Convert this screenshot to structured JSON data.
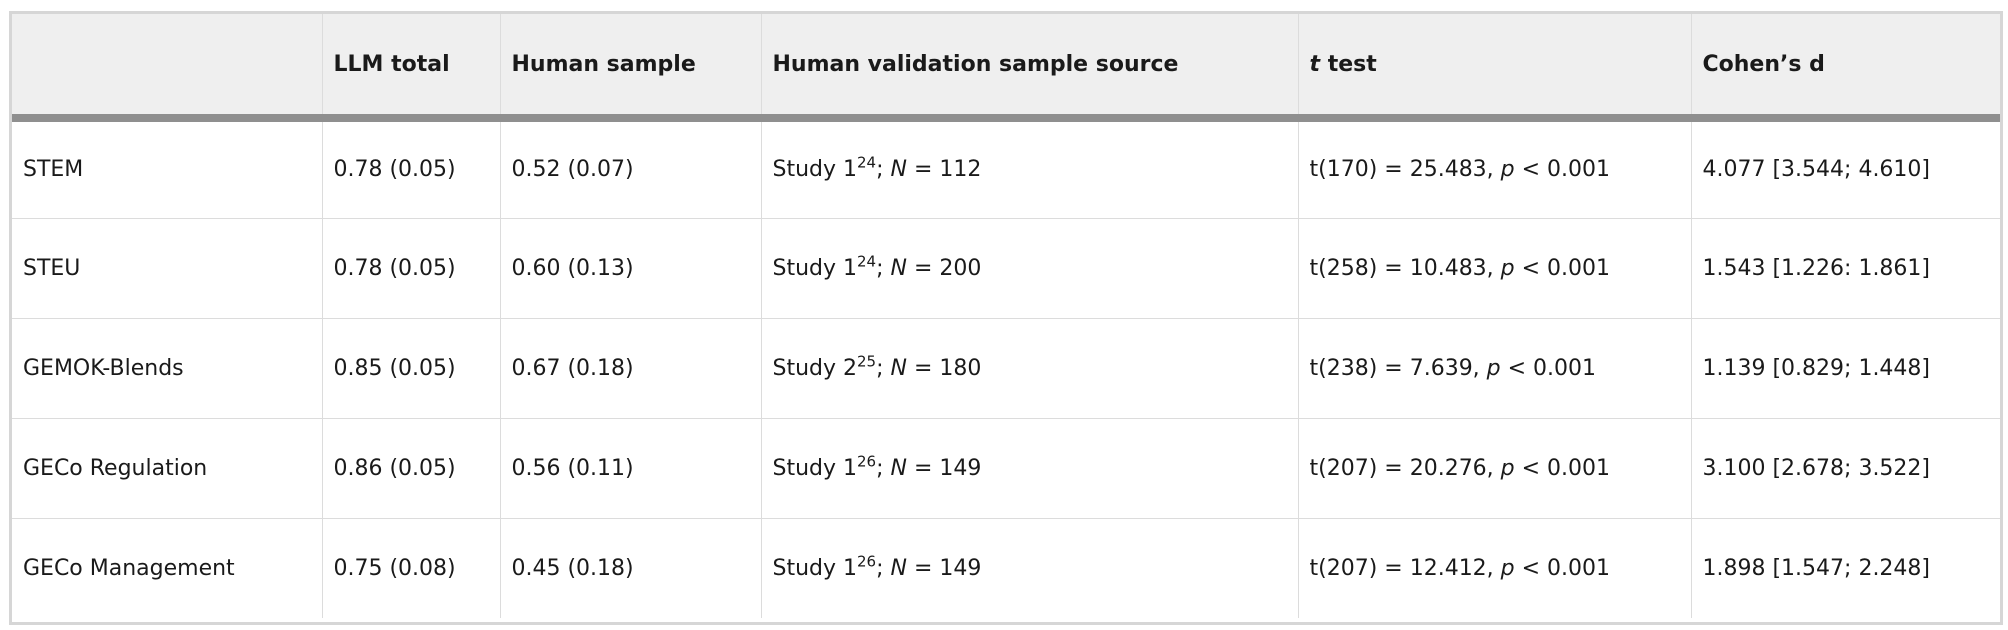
{
  "table": {
    "headers": [
      {
        "text": ""
      },
      {
        "text": "LLM total"
      },
      {
        "text": "Human sample"
      },
      {
        "text": "Human validation sample source"
      },
      {
        "italic": "t",
        "text": " test"
      },
      {
        "text": "Cohen’s d"
      }
    ],
    "rows": [
      {
        "name": "STEM",
        "llm_total": "0.78 (0.05)",
        "human_sample": "0.52 (0.07)",
        "source": {
          "study": "Study 1",
          "ref": "24",
          "n_label": "N",
          "n_value": " = 112"
        },
        "t_test": {
          "stat": "t(170) = 25.483, ",
          "p_label": "p",
          "p_value": " < 0.001"
        },
        "cohens_d": "4.077 [3.544; 4.610]"
      },
      {
        "name": "STEU",
        "llm_total": "0.78 (0.05)",
        "human_sample": "0.60 (0.13)",
        "source": {
          "study": "Study 1",
          "ref": "24",
          "n_label": "N",
          "n_value": " = 200"
        },
        "t_test": {
          "stat": "t(258) = 10.483, ",
          "p_label": "p",
          "p_value": " < 0.001"
        },
        "cohens_d": "1.543 [1.226: 1.861]"
      },
      {
        "name": "GEMOK-Blends",
        "llm_total": "0.85 (0.05)",
        "human_sample": "0.67 (0.18)",
        "source": {
          "study": "Study 2",
          "ref": "25",
          "n_label": "N",
          "n_value": " = 180"
        },
        "t_test": {
          "stat": "t(238) = 7.639, ",
          "p_label": "p",
          "p_value": " < 0.001"
        },
        "cohens_d": "1.139 [0.829; 1.448]"
      },
      {
        "name": "GECo Regulation",
        "llm_total": "0.86 (0.05)",
        "human_sample": "0.56 (0.11)",
        "source": {
          "study": "Study 1",
          "ref": "26",
          "n_label": "N",
          "n_value": " = 149"
        },
        "t_test": {
          "stat": "t(207) = 20.276, ",
          "p_label": "p",
          "p_value": " < 0.001"
        },
        "cohens_d": "3.100 [2.678; 3.522]"
      },
      {
        "name": "GECo Management",
        "llm_total": "0.75 (0.08)",
        "human_sample": "0.45 (0.18)",
        "source": {
          "study": "Study 1",
          "ref": "26",
          "n_label": "N",
          "n_value": " = 149"
        },
        "t_test": {
          "stat": "t(207) = 12.412, ",
          "p_label": "p",
          "p_value": " < 0.001"
        },
        "cohens_d": "1.898 [1.547; 2.248]"
      }
    ]
  }
}
